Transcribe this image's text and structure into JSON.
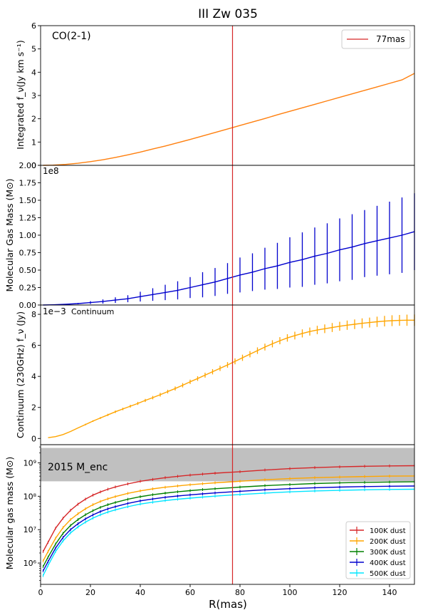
{
  "figure": {
    "title": "III Zw 035",
    "xlabel": "R(mas)",
    "x_ticks": [
      0,
      20,
      40,
      60,
      80,
      100,
      120,
      140
    ],
    "xlim": [
      0,
      150
    ],
    "vline": {
      "x": 77,
      "color": "#d62728",
      "label": "77mas"
    }
  },
  "chart_data": [
    {
      "type": "line",
      "name": "integrated-flux",
      "annotation": "CO(2-1)",
      "ylabel": "Integrated f_ν(Jy km s⁻¹)",
      "ylim": [
        0,
        6
      ],
      "y_ticks": [
        "0",
        "1",
        "2",
        "3",
        "4",
        "5",
        "6"
      ],
      "y_tick_values": [
        0,
        1,
        2,
        3,
        4,
        5,
        6
      ],
      "legend": {
        "position": "top-right",
        "entries": [
          "77mas"
        ]
      },
      "series": [
        {
          "color": "#ff7f0e",
          "x": [
            1,
            5,
            10,
            15,
            20,
            25,
            30,
            35,
            40,
            45,
            50,
            55,
            60,
            65,
            70,
            77,
            80,
            85,
            90,
            95,
            100,
            105,
            110,
            115,
            120,
            125,
            130,
            135,
            140,
            145,
            150
          ],
          "y": [
            0.0,
            0.01,
            0.04,
            0.09,
            0.16,
            0.24,
            0.34,
            0.45,
            0.57,
            0.7,
            0.83,
            0.97,
            1.11,
            1.26,
            1.41,
            1.62,
            1.71,
            1.86,
            2.01,
            2.17,
            2.32,
            2.47,
            2.62,
            2.77,
            2.92,
            3.07,
            3.22,
            3.37,
            3.52,
            3.67,
            3.95
          ]
        }
      ]
    },
    {
      "type": "line",
      "name": "molecular-gas-mass",
      "ylabel": "Molecular Gas Mass (M⊙)",
      "offset_text": "1e8",
      "ylim": [
        0,
        2.0
      ],
      "y_ticks": [
        "0.00",
        "0.25",
        "0.50",
        "0.75",
        "1.00",
        "1.25",
        "1.50",
        "1.75",
        "2.00"
      ],
      "y_tick_values": [
        0,
        0.25,
        0.5,
        0.75,
        1.0,
        1.25,
        1.5,
        1.75,
        2.0
      ],
      "series": [
        {
          "color": "#0000cd",
          "x": [
            1,
            5,
            10,
            15,
            20,
            25,
            30,
            35,
            40,
            45,
            50,
            55,
            60,
            65,
            70,
            75,
            80,
            85,
            90,
            95,
            100,
            105,
            110,
            115,
            120,
            125,
            130,
            135,
            140,
            145,
            150
          ],
          "y": [
            0.0,
            0.003,
            0.01,
            0.02,
            0.035,
            0.05,
            0.07,
            0.09,
            0.12,
            0.15,
            0.18,
            0.21,
            0.25,
            0.29,
            0.33,
            0.38,
            0.43,
            0.47,
            0.52,
            0.56,
            0.61,
            0.65,
            0.7,
            0.74,
            0.79,
            0.83,
            0.88,
            0.92,
            0.96,
            1.0,
            1.05
          ],
          "err": [
            0.0,
            0.002,
            0.005,
            0.01,
            0.02,
            0.03,
            0.04,
            0.05,
            0.07,
            0.09,
            0.11,
            0.13,
            0.15,
            0.18,
            0.2,
            0.22,
            0.25,
            0.27,
            0.3,
            0.33,
            0.36,
            0.39,
            0.41,
            0.43,
            0.45,
            0.47,
            0.48,
            0.5,
            0.52,
            0.54,
            0.55
          ]
        }
      ]
    },
    {
      "type": "line",
      "name": "continuum-flux",
      "annotation": "Continuum",
      "ylabel": "Continuum (230GHz) f_ν (Jy)",
      "offset_text": "1e−3",
      "ylim": [
        -0.4,
        8.6
      ],
      "y_ticks": [
        "0",
        "2",
        "4",
        "6",
        "8"
      ],
      "y_tick_values": [
        0,
        2,
        4,
        6,
        8
      ],
      "series": [
        {
          "color": "#ffa500",
          "x": [
            3,
            6,
            9,
            12,
            15,
            18,
            21,
            24,
            27,
            30,
            33,
            36,
            39,
            42,
            45,
            48,
            51,
            54,
            57,
            60,
            63,
            66,
            69,
            72,
            75,
            78,
            81,
            84,
            87,
            90,
            93,
            96,
            99,
            102,
            105,
            108,
            111,
            114,
            117,
            120,
            123,
            126,
            129,
            132,
            135,
            138,
            141,
            144,
            147,
            150
          ],
          "y": [
            0.05,
            0.12,
            0.25,
            0.45,
            0.68,
            0.9,
            1.12,
            1.32,
            1.52,
            1.72,
            1.9,
            2.08,
            2.26,
            2.45,
            2.63,
            2.82,
            3.02,
            3.22,
            3.43,
            3.65,
            3.86,
            4.08,
            4.3,
            4.52,
            4.74,
            4.97,
            5.2,
            5.43,
            5.66,
            5.89,
            6.1,
            6.3,
            6.48,
            6.63,
            6.77,
            6.89,
            6.99,
            7.07,
            7.15,
            7.23,
            7.3,
            7.36,
            7.42,
            7.47,
            7.52,
            7.56,
            7.59,
            7.61,
            7.62,
            7.62
          ],
          "err": [
            0.0,
            0.0,
            0.0,
            0.0,
            0.0,
            0.05,
            0.05,
            0.06,
            0.07,
            0.08,
            0.08,
            0.09,
            0.1,
            0.1,
            0.11,
            0.12,
            0.12,
            0.13,
            0.14,
            0.14,
            0.15,
            0.16,
            0.17,
            0.17,
            0.18,
            0.19,
            0.2,
            0.2,
            0.21,
            0.22,
            0.23,
            0.23,
            0.24,
            0.25,
            0.26,
            0.26,
            0.27,
            0.28,
            0.29,
            0.29,
            0.3,
            0.31,
            0.32,
            0.32,
            0.33,
            0.34,
            0.35,
            0.35,
            0.36,
            0.37
          ]
        }
      ]
    },
    {
      "type": "line",
      "name": "molecular-gas-mass-log",
      "ylabel": "Molecular gas mass (M⊙)",
      "yscale": "log",
      "ylim": [
        230000,
        3500000000
      ],
      "y_ticks": [
        "10⁶",
        "10⁷",
        "10⁸",
        "10⁹"
      ],
      "y_tick_values": [
        1000000,
        10000000,
        100000000,
        1000000000
      ],
      "band": {
        "label": "2015 M_enc",
        "y0": 280000000,
        "y1": 2800000000,
        "color": "#c0c0c0"
      },
      "legend": {
        "position": "lower-right",
        "entries": [
          "100K dust",
          "200K dust",
          "300K dust",
          "400K dust",
          "500K dust"
        ]
      },
      "x": [
        1,
        3,
        6,
        9,
        12,
        15,
        18,
        21,
        24,
        27,
        30,
        35,
        40,
        45,
        50,
        55,
        60,
        65,
        70,
        77,
        80,
        90,
        100,
        110,
        120,
        130,
        140,
        150
      ],
      "series": [
        {
          "name": "100K dust",
          "color": "#d62728",
          "y": [
            2200000,
            4200000,
            11000000,
            22000000,
            38000000,
            58000000,
            82000000,
            108000000,
            135000000,
            162000000,
            190000000,
            235000000,
            280000000,
            320000000,
            360000000,
            395000000,
            430000000,
            460000000,
            490000000,
            525000000,
            545000000,
            610000000,
            670000000,
            720000000,
            760000000,
            790000000,
            810000000,
            820000000
          ]
        },
        {
          "name": "200K dust",
          "color": "#ffa500",
          "y": [
            1150000,
            2200000,
            5500000,
            11500000,
            20000000,
            30000000,
            42000000,
            56000000,
            70000000,
            84000000,
            98000000,
            122000000,
            145000000,
            166000000,
            186000000,
            204000000,
            221000000,
            237000000,
            252000000,
            272000000,
            282000000,
            312000000,
            338000000,
            360000000,
            377000000,
            390000000,
            400000000,
            405000000
          ]
        },
        {
          "name": "300K dust",
          "color": "#008000",
          "y": [
            780000,
            1500000,
            3700000,
            7700000,
            13300000,
            20000000,
            28000000,
            37000000,
            46500000,
            56000000,
            65000000,
            81000000,
            97000000,
            111000000,
            124000000,
            136000000,
            147000000,
            158000000,
            168000000,
            181000000,
            188000000,
            208000000,
            225000000,
            240000000,
            251000000,
            260000000,
            266000000,
            270000000
          ]
        },
        {
          "name": "400K dust",
          "color": "#0000cd",
          "y": [
            580000,
            1100000,
            2800000,
            5800000,
            10000000,
            15000000,
            21000000,
            27700000,
            34800000,
            42000000,
            49000000,
            61000000,
            73000000,
            83000000,
            93000000,
            102000000,
            110000000,
            118000000,
            126000000,
            136000000,
            141000000,
            156000000,
            169000000,
            180000000,
            188000000,
            195000000,
            200000000,
            203000000
          ]
        },
        {
          "name": "500K dust",
          "color": "#00e5ff",
          "y": [
            420000,
            850000,
            2200000,
            4600000,
            8000000,
            12000000,
            16800000,
            22200000,
            27800000,
            33600000,
            39200000,
            48800000,
            58400000,
            66400000,
            74400000,
            81600000,
            88000000,
            94400000,
            100800000,
            108800000,
            112800000,
            124800000,
            135200000,
            144000000,
            150400000,
            156000000,
            160000000,
            162400000
          ]
        }
      ]
    }
  ]
}
